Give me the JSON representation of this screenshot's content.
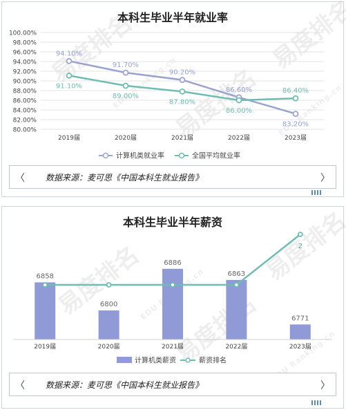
{
  "watermark": {
    "brand": "易度排名",
    "brand_en": "EDU Ranking.cn"
  },
  "source_label": "数据来源：麦可思《中国本科生就业报告》",
  "chart_data": [
    {
      "type": "line",
      "title": "本科生毕业半年就业率",
      "categories": [
        "2019届",
        "2020届",
        "2021届",
        "2022届",
        "2023届"
      ],
      "ylim": [
        80,
        100
      ],
      "yticks": [
        "80.00%",
        "82.00%",
        "84.00%",
        "86.00%",
        "88.00%",
        "90.00%",
        "92.00%",
        "94.00%",
        "96.00%",
        "98.00%",
        "100.00%"
      ],
      "grid": true,
      "legend_position": "bottom",
      "series": [
        {
          "name": "计算机类就业率",
          "color": "#9aa3d0",
          "values": [
            94.1,
            91.7,
            90.2,
            86.6,
            83.2
          ],
          "labels": [
            "94.10%",
            "91.70%",
            "90.20%",
            "86.60%",
            "83.20%"
          ]
        },
        {
          "name": "全国平均就业率",
          "color": "#6fbdb2",
          "values": [
            91.1,
            89.0,
            87.8,
            86.0,
            86.4
          ],
          "labels": [
            "91.10%",
            "89.00%",
            "87.80%",
            "86.00%",
            "86.40%"
          ]
        }
      ]
    },
    {
      "type": "bar",
      "title": "本科生毕业半年薪资",
      "categories": [
        "2019届",
        "2020届",
        "2021届",
        "2022届",
        "2023届"
      ],
      "legend_position": "bottom",
      "bar_series": {
        "name": "计算机类薪资",
        "color": "#8f9ad6",
        "values": [
          6858,
          6800,
          6886,
          6863,
          6771
        ],
        "labels": [
          "6858",
          "6800",
          "6886",
          "6863",
          "6771"
        ]
      },
      "line_series": {
        "name": "薪资排名",
        "color": "#6fbdb2",
        "values": [
          null,
          null,
          null,
          null,
          2
        ],
        "labels": [
          "",
          "",
          "",
          "",
          "2"
        ]
      }
    }
  ]
}
